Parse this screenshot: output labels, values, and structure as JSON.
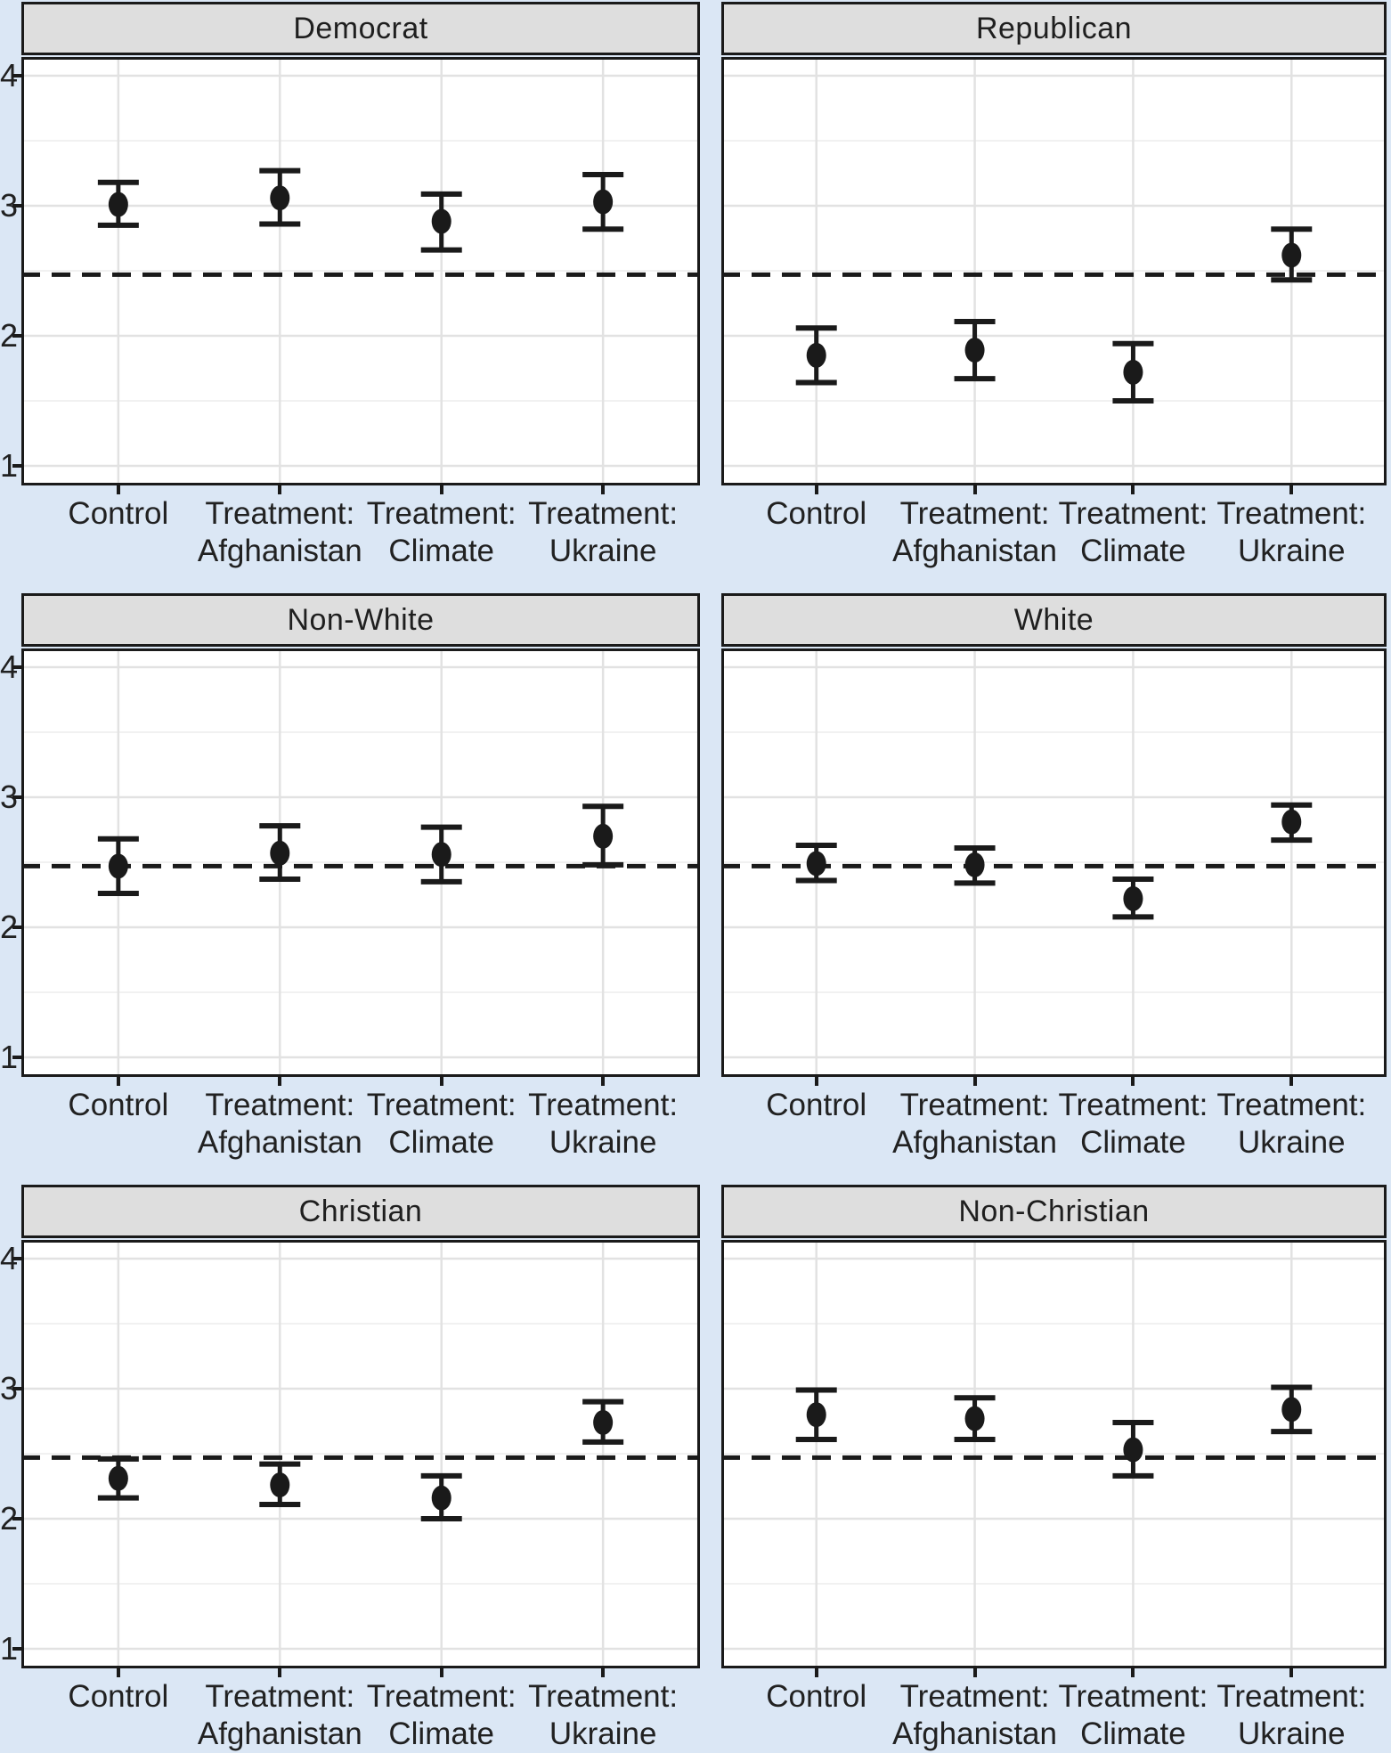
{
  "figure": {
    "kind": "faceted point-range plot",
    "colors": {
      "background": "#dbe7f5",
      "panel_fill": "#ffffff",
      "strip_fill": "#dedede",
      "grid_major": "#e2e2e2",
      "grid_minor": "#f1f1f1",
      "ink": "#1a1a1a",
      "text": "#212121"
    }
  },
  "chart_data": {
    "type": "scatter",
    "subtype": "pointrange-errorbar",
    "title": "",
    "xlabel": "",
    "ylabel": "",
    "grid": "on",
    "legend": "none",
    "facet_layout": {
      "rows": 3,
      "cols": 2
    },
    "categories": [
      "Control",
      "Treatment: Afghanistan",
      "Treatment: Climate",
      "Treatment: Ukraine"
    ],
    "category_label_lines": [
      [
        "Control"
      ],
      [
        "Treatment:",
        "Afghanistan"
      ],
      [
        "Treatment:",
        "Climate"
      ],
      [
        "Treatment:",
        "Ukraine"
      ]
    ],
    "y_ticks": [
      4,
      3,
      2,
      1
    ],
    "y_minor_ticks": [
      3.5,
      2.5,
      1.5
    ],
    "ylim": [
      0.85,
      4.145
    ],
    "reference_line": 2.47,
    "reference_line_style": "dashed",
    "facets": [
      {
        "title": "Democrat",
        "estimates": [
          {
            "category": "Control",
            "value": 3.01,
            "ci_low": 2.85,
            "ci_high": 3.18
          },
          {
            "category": "Treatment: Afghanistan",
            "value": 3.06,
            "ci_low": 2.86,
            "ci_high": 3.27
          },
          {
            "category": "Treatment: Climate",
            "value": 2.88,
            "ci_low": 2.66,
            "ci_high": 3.09
          },
          {
            "category": "Treatment: Ukraine",
            "value": 3.03,
            "ci_low": 2.82,
            "ci_high": 3.24
          }
        ]
      },
      {
        "title": "Republican",
        "estimates": [
          {
            "category": "Control",
            "value": 1.85,
            "ci_low": 1.64,
            "ci_high": 2.06
          },
          {
            "category": "Treatment: Afghanistan",
            "value": 1.89,
            "ci_low": 1.67,
            "ci_high": 2.11
          },
          {
            "category": "Treatment: Climate",
            "value": 1.72,
            "ci_low": 1.5,
            "ci_high": 1.94
          },
          {
            "category": "Treatment: Ukraine",
            "value": 2.62,
            "ci_low": 2.43,
            "ci_high": 2.82
          }
        ]
      },
      {
        "title": "Non-White",
        "estimates": [
          {
            "category": "Control",
            "value": 2.47,
            "ci_low": 2.26,
            "ci_high": 2.68
          },
          {
            "category": "Treatment: Afghanistan",
            "value": 2.57,
            "ci_low": 2.37,
            "ci_high": 2.78
          },
          {
            "category": "Treatment: Climate",
            "value": 2.56,
            "ci_low": 2.35,
            "ci_high": 2.77
          },
          {
            "category": "Treatment: Ukraine",
            "value": 2.7,
            "ci_low": 2.48,
            "ci_high": 2.93
          }
        ]
      },
      {
        "title": "White",
        "estimates": [
          {
            "category": "Control",
            "value": 2.49,
            "ci_low": 2.36,
            "ci_high": 2.63
          },
          {
            "category": "Treatment: Afghanistan",
            "value": 2.48,
            "ci_low": 2.34,
            "ci_high": 2.61
          },
          {
            "category": "Treatment: Climate",
            "value": 2.22,
            "ci_low": 2.08,
            "ci_high": 2.37
          },
          {
            "category": "Treatment: Ukraine",
            "value": 2.81,
            "ci_low": 2.67,
            "ci_high": 2.94
          }
        ]
      },
      {
        "title": "Christian",
        "estimates": [
          {
            "category": "Control",
            "value": 2.31,
            "ci_low": 2.16,
            "ci_high": 2.46
          },
          {
            "category": "Treatment: Afghanistan",
            "value": 2.26,
            "ci_low": 2.11,
            "ci_high": 2.42
          },
          {
            "category": "Treatment: Climate",
            "value": 2.16,
            "ci_low": 2.0,
            "ci_high": 2.33
          },
          {
            "category": "Treatment: Ukraine",
            "value": 2.74,
            "ci_low": 2.59,
            "ci_high": 2.9
          }
        ]
      },
      {
        "title": "Non-Christian",
        "estimates": [
          {
            "category": "Control",
            "value": 2.8,
            "ci_low": 2.61,
            "ci_high": 2.99
          },
          {
            "category": "Treatment: Afghanistan",
            "value": 2.77,
            "ci_low": 2.61,
            "ci_high": 2.93
          },
          {
            "category": "Treatment: Climate",
            "value": 2.53,
            "ci_low": 2.33,
            "ci_high": 2.74
          },
          {
            "category": "Treatment: Ukraine",
            "value": 2.84,
            "ci_low": 2.67,
            "ci_high": 3.01
          }
        ]
      }
    ]
  }
}
